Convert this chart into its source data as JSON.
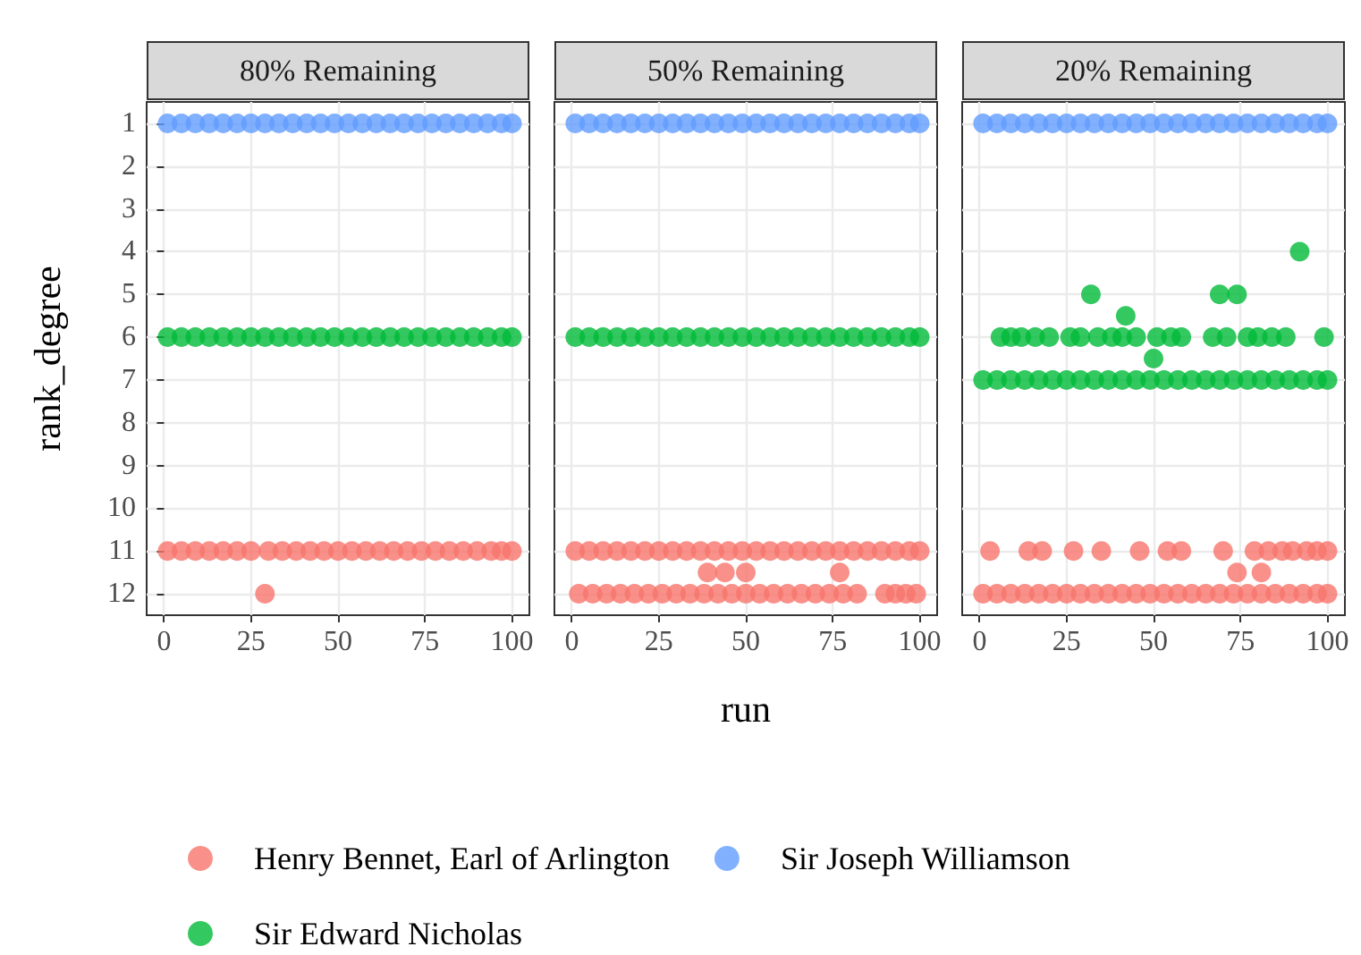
{
  "chart_data": [
    {
      "type": "scatter",
      "title": "80% Remaining",
      "ylabel": "rank_degree",
      "legend": "bottom",
      "marker": "circle",
      "grid": true,
      "xlim": [
        -5,
        105
      ],
      "xticks": [
        0,
        25,
        50,
        75,
        100
      ],
      "ylim": [
        12.5,
        0.5
      ],
      "yticks": [
        1,
        2,
        3,
        4,
        5,
        6,
        7,
        8,
        9,
        10,
        11,
        12
      ],
      "series": [
        {
          "name": "Henry Bennet, Earl of Arlington",
          "color": "#f8766d",
          "x": [
            1,
            5,
            9,
            13,
            17,
            21,
            25,
            29,
            30,
            34,
            38,
            42,
            46,
            50,
            54,
            58,
            62,
            66,
            70,
            74,
            78,
            82,
            86,
            90,
            94,
            97,
            100
          ],
          "values": [
            11,
            11,
            11,
            11,
            11,
            11,
            11,
            12,
            11,
            11,
            11,
            11,
            11,
            11,
            11,
            11,
            11,
            11,
            11,
            11,
            11,
            11,
            11,
            11,
            11,
            11,
            11
          ]
        },
        {
          "name": "Sir Edward Nicholas",
          "color": "#00ba38",
          "x": [
            1,
            5,
            9,
            13,
            17,
            21,
            25,
            29,
            33,
            37,
            41,
            45,
            49,
            53,
            57,
            61,
            65,
            69,
            73,
            77,
            81,
            85,
            89,
            93,
            97,
            100
          ],
          "values": [
            6,
            6,
            6,
            6,
            6,
            6,
            6,
            6,
            6,
            6,
            6,
            6,
            6,
            6,
            6,
            6,
            6,
            6,
            6,
            6,
            6,
            6,
            6,
            6,
            6,
            6
          ]
        },
        {
          "name": "Sir Joseph Williamson",
          "color": "#619cff",
          "x": [
            1,
            5,
            9,
            13,
            17,
            21,
            25,
            29,
            33,
            37,
            41,
            45,
            49,
            53,
            57,
            61,
            65,
            69,
            73,
            77,
            81,
            85,
            89,
            93,
            97,
            100
          ],
          "values": [
            1,
            1,
            1,
            1,
            1,
            1,
            1,
            1,
            1,
            1,
            1,
            1,
            1,
            1,
            1,
            1,
            1,
            1,
            1,
            1,
            1,
            1,
            1,
            1,
            1,
            1
          ]
        }
      ]
    },
    {
      "type": "scatter",
      "title": "50% Remaining",
      "xlabel": "run",
      "tick_labels": "x",
      "marker": "circle",
      "grid": true,
      "xlim": [
        -5,
        105
      ],
      "xticks": [
        0,
        25,
        50,
        75,
        100
      ],
      "ylim": [
        12.5,
        0.5
      ],
      "yticks": [
        1,
        2,
        3,
        4,
        5,
        6,
        7,
        8,
        9,
        10,
        11,
        12
      ],
      "series": [
        {
          "color": "#f8766d",
          "x": [
            1,
            5,
            9,
            13,
            17,
            21,
            25,
            29,
            33,
            37,
            41,
            45,
            49,
            53,
            57,
            61,
            65,
            69,
            73,
            77,
            81,
            85,
            89,
            93,
            97,
            100,
            2,
            6,
            10,
            14,
            18,
            22,
            26,
            30,
            34,
            38,
            42,
            46,
            50,
            54,
            58,
            62,
            66,
            70,
            74,
            78,
            82,
            90,
            93,
            96,
            99,
            39,
            44,
            50,
            77
          ],
          "values": [
            11,
            11,
            11,
            11,
            11,
            11,
            11,
            11,
            11,
            11,
            11,
            11,
            11,
            11,
            11,
            11,
            11,
            11,
            11,
            11,
            11,
            11,
            11,
            11,
            11,
            11,
            12,
            12,
            12,
            12,
            12,
            12,
            12,
            12,
            12,
            12,
            12,
            12,
            12,
            12,
            12,
            12,
            12,
            12,
            12,
            12,
            12,
            12,
            12,
            12,
            12,
            11.5,
            11.5,
            11.5,
            11.5
          ]
        },
        {
          "color": "#00ba38",
          "x": [
            1,
            5,
            9,
            13,
            17,
            21,
            25,
            29,
            33,
            37,
            41,
            45,
            49,
            53,
            57,
            61,
            65,
            69,
            73,
            77,
            81,
            85,
            89,
            93,
            97,
            100
          ],
          "values": [
            6,
            6,
            6,
            6,
            6,
            6,
            6,
            6,
            6,
            6,
            6,
            6,
            6,
            6,
            6,
            6,
            6,
            6,
            6,
            6,
            6,
            6,
            6,
            6,
            6,
            6
          ]
        },
        {
          "color": "#619cff",
          "x": [
            1,
            5,
            9,
            13,
            17,
            21,
            25,
            29,
            33,
            37,
            41,
            45,
            49,
            53,
            57,
            61,
            65,
            69,
            73,
            77,
            81,
            85,
            89,
            93,
            97,
            100
          ],
          "values": [
            1,
            1,
            1,
            1,
            1,
            1,
            1,
            1,
            1,
            1,
            1,
            1,
            1,
            1,
            1,
            1,
            1,
            1,
            1,
            1,
            1,
            1,
            1,
            1,
            1,
            1
          ]
        }
      ]
    },
    {
      "type": "scatter",
      "title": "20% Remaining",
      "tick_labels": "x",
      "marker": "circle",
      "grid": true,
      "xlim": [
        -5,
        105
      ],
      "xticks": [
        0,
        25,
        50,
        75,
        100
      ],
      "ylim": [
        12.5,
        0.5
      ],
      "yticks": [
        1,
        2,
        3,
        4,
        5,
        6,
        7,
        8,
        9,
        10,
        11,
        12
      ],
      "series": [
        {
          "color": "#f8766d",
          "x": [
            1,
            5,
            9,
            13,
            17,
            21,
            25,
            29,
            33,
            37,
            41,
            45,
            49,
            53,
            57,
            61,
            65,
            69,
            73,
            77,
            81,
            85,
            89,
            93,
            97,
            100,
            3,
            14,
            18,
            27,
            35,
            46,
            54,
            58,
            70,
            79,
            83,
            87,
            90,
            94,
            97,
            100,
            74,
            81
          ],
          "values": [
            12,
            12,
            12,
            12,
            12,
            12,
            12,
            12,
            12,
            12,
            12,
            12,
            12,
            12,
            12,
            12,
            12,
            12,
            12,
            12,
            12,
            12,
            12,
            12,
            12,
            12,
            11,
            11,
            11,
            11,
            11,
            11,
            11,
            11,
            11,
            11,
            11,
            11,
            11,
            11,
            11,
            11,
            11.5,
            11.5
          ]
        },
        {
          "color": "#00ba38",
          "x": [
            1,
            5,
            9,
            13,
            17,
            21,
            25,
            29,
            33,
            37,
            41,
            45,
            49,
            53,
            57,
            61,
            65,
            69,
            73,
            77,
            81,
            85,
            89,
            93,
            97,
            100,
            6,
            9,
            12,
            16,
            20,
            26,
            29,
            34,
            38,
            41,
            45,
            51,
            55,
            58,
            67,
            71,
            77,
            80,
            84,
            88,
            99,
            92,
            32,
            69,
            74,
            42,
            50
          ],
          "values": [
            7,
            7,
            7,
            7,
            7,
            7,
            7,
            7,
            7,
            7,
            7,
            7,
            7,
            7,
            7,
            7,
            7,
            7,
            7,
            7,
            7,
            7,
            7,
            7,
            7,
            7,
            6,
            6,
            6,
            6,
            6,
            6,
            6,
            6,
            6,
            6,
            6,
            6,
            6,
            6,
            6,
            6,
            6,
            6,
            6,
            6,
            6,
            4,
            5,
            5,
            5,
            5.5,
            6.5
          ]
        },
        {
          "color": "#619cff",
          "x": [
            1,
            5,
            9,
            13,
            17,
            21,
            25,
            29,
            33,
            37,
            41,
            45,
            49,
            53,
            57,
            61,
            65,
            69,
            73,
            77,
            81,
            85,
            89,
            93,
            97,
            100
          ],
          "values": [
            1,
            1,
            1,
            1,
            1,
            1,
            1,
            1,
            1,
            1,
            1,
            1,
            1,
            1,
            1,
            1,
            1,
            1,
            1,
            1,
            1,
            1,
            1,
            1,
            1,
            1
          ]
        }
      ]
    }
  ]
}
